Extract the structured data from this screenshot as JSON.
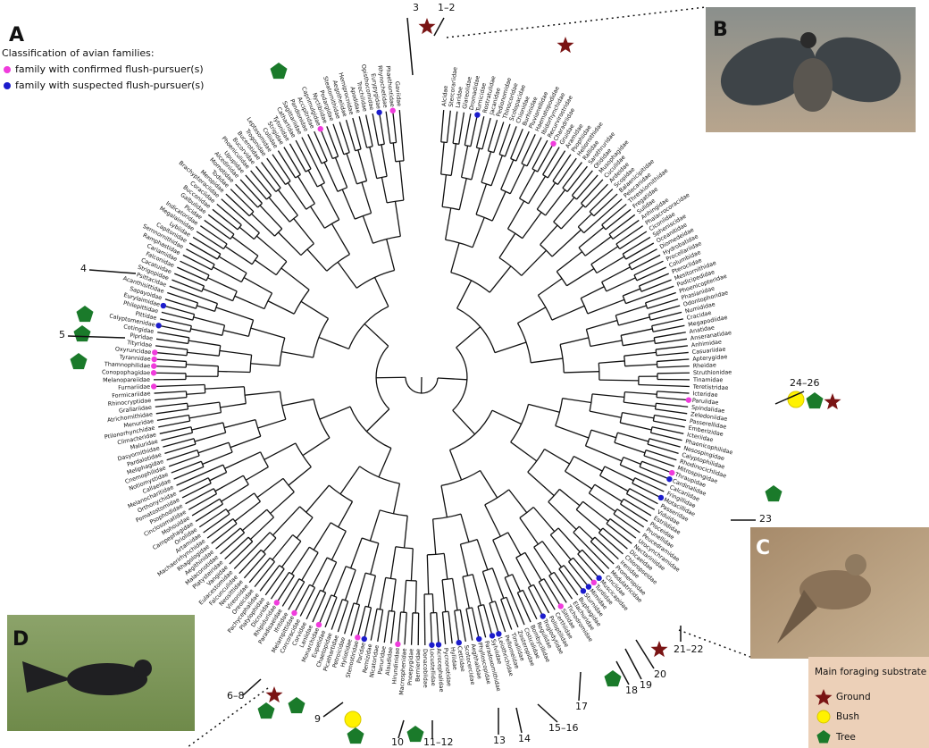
{
  "panel_labels": [
    "A",
    "B",
    "C",
    "D"
  ],
  "legend": {
    "title": "Classification of avian families:",
    "items": [
      {
        "label": "family with confirmed flush-pursuer(s)",
        "color": "#f03cdc"
      },
      {
        "label": "family with suspected flush-pursuer(s)",
        "color": "#1c1ccc"
      }
    ]
  },
  "substrate_legend": {
    "title": "Main foraging substrate",
    "items": [
      "Ground",
      "Bush",
      "Tree"
    ]
  },
  "callouts": [
    "3",
    "1–2",
    "4",
    "5",
    "6–8",
    "9",
    "10",
    "11–12",
    "13",
    "14",
    "15–16",
    "17",
    "18",
    "19",
    "20",
    "21–22",
    "23",
    "24–26"
  ],
  "tree": {
    "leaves": [
      {
        "name": "Alcidae"
      },
      {
        "name": "Stercorariidae"
      },
      {
        "name": "Laridae"
      },
      {
        "name": "Glareolidae"
      },
      {
        "name": "Dromadidae"
      },
      {
        "name": "Turnicidae",
        "dot": "#1c1ccc"
      },
      {
        "name": "Rostratulidae"
      },
      {
        "name": "Jacanidae"
      },
      {
        "name": "Pedionomidae"
      },
      {
        "name": "Thinocoridae"
      },
      {
        "name": "Scolopacidae"
      },
      {
        "name": "Chionidae"
      },
      {
        "name": "Burhinidae"
      },
      {
        "name": "Pluvianellidae"
      },
      {
        "name": "Haematopodidae"
      },
      {
        "name": "Ibidorhynchidae"
      },
      {
        "name": "Recurvirostridae"
      },
      {
        "name": "Charadriidae",
        "dot": "#f03cdc"
      },
      {
        "name": "Gruidae"
      },
      {
        "name": "Aramidae"
      },
      {
        "name": "Psophiidae"
      },
      {
        "name": "Heliornithidae"
      },
      {
        "name": "Rallidae"
      },
      {
        "name": "Sarothruridae"
      },
      {
        "name": "Otididae"
      },
      {
        "name": "Musophagidae"
      },
      {
        "name": "Cuculidae"
      },
      {
        "name": "Ardeidae"
      },
      {
        "name": "Scopidae"
      },
      {
        "name": "Balaenicipitidae"
      },
      {
        "name": "Pelecanidae"
      },
      {
        "name": "Threskiornithidae"
      },
      {
        "name": "Fregatidae"
      },
      {
        "name": "Sulidae"
      },
      {
        "name": "Anhingidae"
      },
      {
        "name": "Phalacrocoracidae"
      },
      {
        "name": "Ciconiidae"
      },
      {
        "name": "Spheniscidae"
      },
      {
        "name": "Oceanitidae"
      },
      {
        "name": "Diomedeidae"
      },
      {
        "name": "Hydrobatidae"
      },
      {
        "name": "Procellariidae"
      },
      {
        "name": "Columbidae"
      },
      {
        "name": "Pteroclidae"
      },
      {
        "name": "Mesitornithidae"
      },
      {
        "name": "Podicipedidae"
      },
      {
        "name": "Phoenicopteridae"
      },
      {
        "name": "Phasianidae"
      },
      {
        "name": "Odontophoridae"
      },
      {
        "name": "Numididae"
      },
      {
        "name": "Cracidae"
      },
      {
        "name": "Megapodiidae"
      },
      {
        "name": "Anatidae"
      },
      {
        "name": "Anseranatidae"
      },
      {
        "name": "Anhimidae"
      },
      {
        "name": "Casuariidae"
      },
      {
        "name": "Apterygidae"
      },
      {
        "name": "Rheidae"
      },
      {
        "name": "Struthionidae"
      },
      {
        "name": "Tinamidae"
      },
      {
        "name": "Teretistridae"
      },
      {
        "name": "Icteridae"
      },
      {
        "name": "Parulidae",
        "dot": "#f03cdc"
      },
      {
        "name": "Spindalidae"
      },
      {
        "name": "Zeledoniidae"
      },
      {
        "name": "Passerellidae"
      },
      {
        "name": "Emberizidae"
      },
      {
        "name": "Icteriidae"
      },
      {
        "name": "Phaenicophilidae"
      },
      {
        "name": "Nesospingidae"
      },
      {
        "name": "Calyptophilidae"
      },
      {
        "name": "Rhodinocichlidae"
      },
      {
        "name": "Mitrospingidae"
      },
      {
        "name": "Thraupidae",
        "dot": "#f03cdc"
      },
      {
        "name": "Cardinalidae",
        "dot": "#1c1ccc"
      },
      {
        "name": "Calcariidae"
      },
      {
        "name": "Fringillidae"
      },
      {
        "name": "Motacillidae",
        "dot": "#1c1ccc"
      },
      {
        "name": "Passeridae"
      },
      {
        "name": "Viduidae"
      },
      {
        "name": "Estrildidae"
      },
      {
        "name": "Ploceidae"
      },
      {
        "name": "Prunellidae"
      },
      {
        "name": "Peucedramidae"
      },
      {
        "name": "Urocynchramidae"
      },
      {
        "name": "Nectariniidae"
      },
      {
        "name": "Dicaeidae"
      },
      {
        "name": "Chloropseidae"
      },
      {
        "name": "Irenidae"
      },
      {
        "name": "Promeropidae"
      },
      {
        "name": "Modulatricidae"
      },
      {
        "name": "Cinclidae"
      },
      {
        "name": "Muscicapidae",
        "dot": "#1c1ccc"
      },
      {
        "name": "Turdidae",
        "dot": "#f03cdc"
      },
      {
        "name": "Mimidae",
        "dot": "#1c1ccc"
      },
      {
        "name": "Sturnidae",
        "dot": "#1c1ccc"
      },
      {
        "name": "Buphagidae"
      },
      {
        "name": "Elachuridae"
      },
      {
        "name": "Tichodromidae"
      },
      {
        "name": "Sittidae",
        "dot": "#f03cdc"
      },
      {
        "name": "Certhiidae"
      },
      {
        "name": "Polioptilidae"
      },
      {
        "name": "Troglodytidae",
        "dot": "#1c1ccc"
      },
      {
        "name": "Regulidae"
      },
      {
        "name": "Bombycillidae"
      },
      {
        "name": "Cisticolidae"
      },
      {
        "name": "Zosteropidae"
      },
      {
        "name": "Timaliidae"
      },
      {
        "name": "Pellorneidae"
      },
      {
        "name": "Leiothrichidae",
        "dot": "#1c1ccc"
      },
      {
        "name": "Sylviidae",
        "dot": "#1c1ccc"
      },
      {
        "name": "Paradoxornithidae"
      },
      {
        "name": "Phylloscopidae",
        "dot": "#1c1ccc"
      },
      {
        "name": "Aegithalidae"
      },
      {
        "name": "Scotocercidae"
      },
      {
        "name": "Cettiidae",
        "dot": "#1c1ccc"
      },
      {
        "name": "Hyliidae"
      },
      {
        "name": "Pycnonotidae"
      },
      {
        "name": "Acrocephalidae",
        "dot": "#1c1ccc"
      },
      {
        "name": "Locustellidae",
        "dot": "#1c1ccc"
      },
      {
        "name": "Donacobiidae"
      },
      {
        "name": "Bernieridae"
      },
      {
        "name": "Pnoepygidae"
      },
      {
        "name": "Macrosphenidae"
      },
      {
        "name": "Hirundinidae",
        "dot": "#f03cdc"
      },
      {
        "name": "Alaudidae"
      },
      {
        "name": "Panuridae"
      },
      {
        "name": "Nicatoridae"
      },
      {
        "name": "Remizidae"
      },
      {
        "name": "Paridae",
        "dot": "#1c1ccc"
      },
      {
        "name": "Stenostiridae",
        "dot": "#f03cdc"
      },
      {
        "name": "Hyliotidae"
      },
      {
        "name": "Petroicidae"
      },
      {
        "name": "Picathartidae"
      },
      {
        "name": "Chaetopidae"
      },
      {
        "name": "Eupetidae"
      },
      {
        "name": "Monarchidae",
        "dot": "#f03cdc"
      },
      {
        "name": "Laniidae"
      },
      {
        "name": "Corvidae"
      },
      {
        "name": "Corcoracidae"
      },
      {
        "name": "Melampittidae",
        "dot": "#f03cdc"
      },
      {
        "name": "Ifritidae"
      },
      {
        "name": "Paradisaeidae"
      },
      {
        "name": "Rhipiduridae",
        "dot": "#f03cdc"
      },
      {
        "name": "Dicruridae"
      },
      {
        "name": "Platylophidae"
      },
      {
        "name": "Pachycephalidae"
      },
      {
        "name": "Oreoicidae"
      },
      {
        "name": "Vireonidae"
      },
      {
        "name": "Neosittidae"
      },
      {
        "name": "Falcunculidae"
      },
      {
        "name": "Eulacestomidae"
      },
      {
        "name": "Vangidae"
      },
      {
        "name": "Platysteiridae"
      },
      {
        "name": "Malaconotidae"
      },
      {
        "name": "Aegithinidae"
      },
      {
        "name": "Rhagologidae"
      },
      {
        "name": "Machaerirhynchidae"
      },
      {
        "name": "Artamidae"
      },
      {
        "name": "Oriolidae"
      },
      {
        "name": "Campephagidae"
      },
      {
        "name": "Mohouidae"
      },
      {
        "name": "Cinclosomatidae"
      },
      {
        "name": "Psophodidae"
      },
      {
        "name": "Pomatostomidae"
      },
      {
        "name": "Orthonychidae"
      },
      {
        "name": "Melanocharitidae"
      },
      {
        "name": "Callaeidae"
      },
      {
        "name": "Notiomystidae"
      },
      {
        "name": "Cnemophilidae"
      },
      {
        "name": "Meliphagidae"
      },
      {
        "name": "Pardalotidae"
      },
      {
        "name": "Dasyornithidae"
      },
      {
        "name": "Maluridae"
      },
      {
        "name": "Climacteridae"
      },
      {
        "name": "Ptilonorhynchidae"
      },
      {
        "name": "Menuridae"
      },
      {
        "name": "Atrichornithidae"
      },
      {
        "name": "Grallariidae"
      },
      {
        "name": "Rhinocryptidae"
      },
      {
        "name": "Formicariidae"
      },
      {
        "name": "Furnariidae",
        "dot": "#f03cdc"
      },
      {
        "name": "Melanopareiidae"
      },
      {
        "name": "Conopophagidae",
        "dot": "#f03cdc"
      },
      {
        "name": "Thamnophilidae",
        "dot": "#f03cdc"
      },
      {
        "name": "Tyrannidae",
        "dot": "#f03cdc"
      },
      {
        "name": "Oxyruncidae",
        "dot": "#f03cdc"
      },
      {
        "name": "Tityridae"
      },
      {
        "name": "Pipridae"
      },
      {
        "name": "Cotingidae"
      },
      {
        "name": "Calyptomenidae",
        "dot": "#1c1ccc"
      },
      {
        "name": "Pittidae"
      },
      {
        "name": "Philepittidae"
      },
      {
        "name": "Eurylaimidae",
        "dot": "#1c1ccc"
      },
      {
        "name": "Sapayoidae"
      },
      {
        "name": "Acanthisittidae"
      },
      {
        "name": "Psittacidae"
      },
      {
        "name": "Strigopidae"
      },
      {
        "name": "Cacatuidae"
      },
      {
        "name": "Falconidae"
      },
      {
        "name": "Cariamidae"
      },
      {
        "name": "Ramphastidae"
      },
      {
        "name": "Semnornithidae"
      },
      {
        "name": "Capitonidae"
      },
      {
        "name": "Lybiidae"
      },
      {
        "name": "Megalaimidae"
      },
      {
        "name": "Indicatoridae"
      },
      {
        "name": "Picidae"
      },
      {
        "name": "Galbulidae"
      },
      {
        "name": "Bucconidae"
      },
      {
        "name": "Coraciidae"
      },
      {
        "name": "Brachypteraciidae"
      },
      {
        "name": "Meropidae"
      },
      {
        "name": "Todidae"
      },
      {
        "name": "Momotidae"
      },
      {
        "name": "Alcedinidae"
      },
      {
        "name": "Upupidae"
      },
      {
        "name": "Phoeniculidae"
      },
      {
        "name": "Bucorvidae"
      },
      {
        "name": "Bucerotidae"
      },
      {
        "name": "Trogonidae"
      },
      {
        "name": "Leptosomidae"
      },
      {
        "name": "Coliidae"
      },
      {
        "name": "Strigidae"
      },
      {
        "name": "Tytonidae"
      },
      {
        "name": "Cathartidae"
      },
      {
        "name": "Sagittariidae"
      },
      {
        "name": "Pandionidae"
      },
      {
        "name": "Accipitridae"
      },
      {
        "name": "Caprimulgidae",
        "dot": "#f03cdc"
      },
      {
        "name": "Nyctibiidae"
      },
      {
        "name": "Podargidae"
      },
      {
        "name": "Steatornithidae"
      },
      {
        "name": "Aegothelidae"
      },
      {
        "name": "Hemiprocnidae"
      },
      {
        "name": "Apodidae"
      },
      {
        "name": "Trochilidae"
      },
      {
        "name": "Opisthocomidae"
      },
      {
        "name": "Eurypygidae",
        "dot": "#1c1ccc"
      },
      {
        "name": "Rhynochetidae"
      },
      {
        "name": "Phaethontidae",
        "dot": "#f03cdc"
      },
      {
        "name": "Gaviidae"
      }
    ]
  }
}
